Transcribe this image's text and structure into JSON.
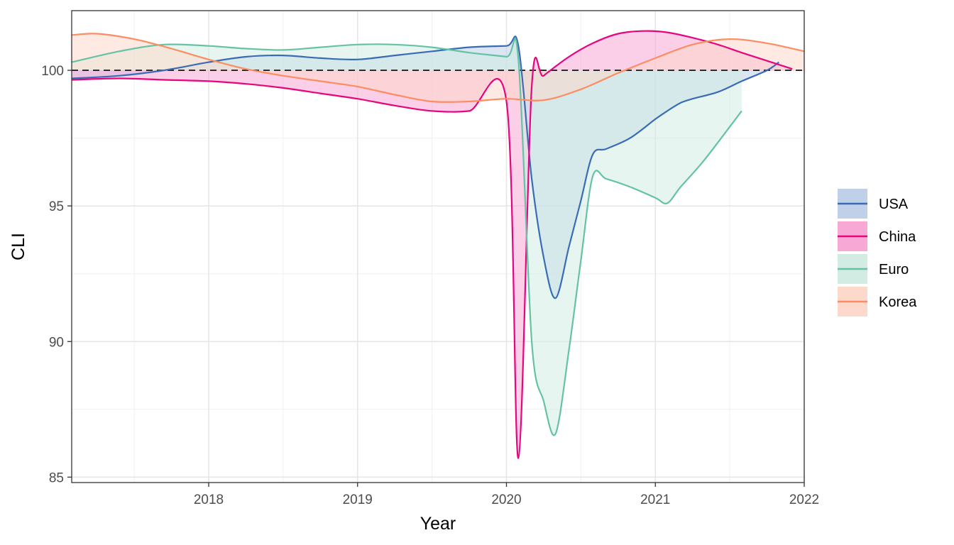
{
  "chart_data": {
    "type": "area",
    "title": "",
    "xlabel": "Year",
    "ylabel": "CLI",
    "xlim": [
      2017.08,
      2022.0
    ],
    "ylim": [
      84.8,
      102.2
    ],
    "x_ticks": [
      2018,
      2019,
      2020,
      2021,
      2022
    ],
    "x_tick_labels": [
      "2018",
      "2019",
      "2020",
      "2021",
      "2022"
    ],
    "y_ticks": [
      85,
      90,
      95,
      100
    ],
    "y_tick_labels": [
      "85",
      "90",
      "95",
      "100"
    ],
    "reference_line": 100,
    "grid": true,
    "legend_position": "right",
    "series": [
      {
        "name": "USA",
        "color": "#3a6bb5",
        "fill": "#bfd0e8",
        "x": [
          2017.08,
          2017.4,
          2017.7,
          2018.0,
          2018.25,
          2018.5,
          2018.75,
          2019.0,
          2019.25,
          2019.5,
          2019.75,
          2020.0,
          2020.08,
          2020.17,
          2020.25,
          2020.33,
          2020.42,
          2020.5,
          2020.58,
          2020.67,
          2020.83,
          2021.0,
          2021.08,
          2021.17,
          2021.25,
          2021.42,
          2021.58,
          2021.75,
          2021.83
        ],
        "values": [
          99.7,
          99.8,
          100.0,
          100.3,
          100.5,
          100.55,
          100.45,
          100.4,
          100.55,
          100.7,
          100.85,
          100.9,
          100.9,
          96.0,
          93.1,
          91.6,
          93.5,
          95.2,
          96.9,
          97.1,
          97.5,
          98.2,
          98.5,
          98.8,
          98.95,
          99.2,
          99.6,
          100.0,
          100.3
        ]
      },
      {
        "name": "China",
        "color": "#e7057f",
        "fill": "#f7a8d5",
        "x": [
          2017.08,
          2017.4,
          2017.7,
          2018.0,
          2018.25,
          2018.5,
          2018.75,
          2019.0,
          2019.25,
          2019.5,
          2019.75,
          2020.0,
          2020.08,
          2020.17,
          2020.25,
          2020.42,
          2020.58,
          2020.75,
          2020.92,
          2021.08,
          2021.25,
          2021.42,
          2021.58,
          2021.75,
          2021.92
        ],
        "values": [
          99.65,
          99.7,
          99.65,
          99.6,
          99.5,
          99.35,
          99.15,
          98.95,
          98.7,
          98.5,
          98.5,
          98.85,
          85.7,
          99.4,
          99.8,
          100.5,
          101.0,
          101.35,
          101.45,
          101.4,
          101.2,
          100.95,
          100.65,
          100.35,
          100.05
        ]
      },
      {
        "name": "Euro",
        "color": "#66c2a5",
        "fill": "#d2ece3",
        "x": [
          2017.08,
          2017.4,
          2017.7,
          2018.0,
          2018.25,
          2018.5,
          2018.75,
          2019.0,
          2019.25,
          2019.5,
          2019.75,
          2020.0,
          2020.08,
          2020.17,
          2020.25,
          2020.33,
          2020.42,
          2020.5,
          2020.58,
          2020.67,
          2020.83,
          2021.0,
          2021.08,
          2021.17,
          2021.33,
          2021.58
        ],
        "values": [
          100.3,
          100.7,
          100.95,
          100.9,
          100.8,
          100.75,
          100.85,
          100.95,
          100.95,
          100.85,
          100.65,
          100.5,
          100.4,
          90.0,
          87.8,
          86.6,
          89.7,
          93.0,
          96.1,
          96.0,
          95.7,
          95.3,
          95.1,
          95.7,
          96.7,
          98.5
        ]
      },
      {
        "name": "Korea",
        "color": "#fc8d62",
        "fill": "#fdd9cb",
        "x": [
          2017.08,
          2017.25,
          2017.5,
          2017.75,
          2018.0,
          2018.25,
          2018.5,
          2018.75,
          2019.0,
          2019.25,
          2019.5,
          2019.75,
          2020.0,
          2020.25,
          2020.5,
          2020.75,
          2021.0,
          2021.25,
          2021.5,
          2021.75,
          2022.0
        ],
        "values": [
          101.3,
          101.35,
          101.15,
          100.8,
          100.4,
          100.05,
          99.8,
          99.6,
          99.4,
          99.1,
          98.85,
          98.85,
          98.95,
          98.9,
          99.3,
          99.9,
          100.45,
          100.95,
          101.15,
          101.0,
          100.7
        ]
      }
    ]
  }
}
